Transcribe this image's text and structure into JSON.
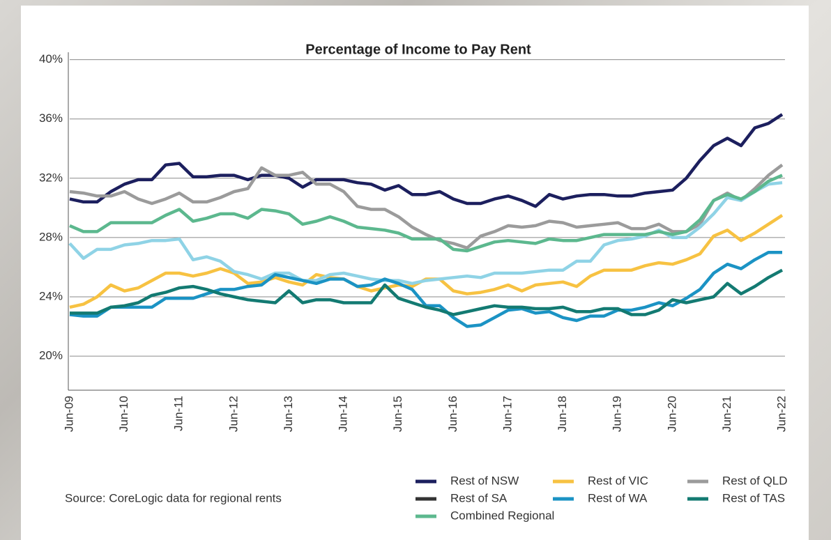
{
  "chart_data": {
    "type": "line",
    "title": "Percentage of Income to Pay Rent",
    "source": "Source: CoreLogic data for regional rents",
    "categories": [
      "Jun-09",
      null,
      null,
      null,
      "Jun-10",
      null,
      null,
      null,
      "Jun-11",
      null,
      null,
      null,
      "Jun-12",
      null,
      null,
      null,
      "Jun-13",
      null,
      null,
      null,
      "Jun-14",
      null,
      null,
      null,
      "Jun-15",
      null,
      null,
      null,
      "Jun-16",
      null,
      null,
      null,
      "Jun-17",
      null,
      null,
      null,
      "Jun-18",
      null,
      null,
      null,
      "Jun-19",
      null,
      null,
      null,
      "Jun-20",
      null,
      null,
      null,
      "Jun-21",
      null,
      null,
      null,
      "Jun-22"
    ],
    "ylim": [
      17.7,
      40.5
    ],
    "yticks": [
      {
        "value": 20,
        "label": "20%"
      },
      {
        "value": 24,
        "label": "24%"
      },
      {
        "value": 28,
        "label": "28%"
      },
      {
        "value": 32,
        "label": "32%"
      },
      {
        "value": 36,
        "label": "36%"
      },
      {
        "value": 40,
        "label": "40%"
      }
    ],
    "grid": true,
    "series": [
      {
        "name": "Rest of NSW",
        "color": "#1c1f5e",
        "values": [
          30.6,
          30.4,
          30.4,
          31.1,
          31.6,
          31.9,
          31.9,
          32.9,
          33.0,
          32.1,
          32.1,
          32.2,
          32.2,
          31.9,
          32.2,
          32.2,
          32.0,
          31.4,
          31.9,
          31.9,
          31.9,
          31.7,
          31.6,
          31.2,
          31.5,
          30.9,
          30.9,
          31.1,
          30.6,
          30.3,
          30.3,
          30.6,
          30.8,
          30.5,
          30.1,
          30.9,
          30.6,
          30.8,
          30.9,
          30.9,
          30.8,
          30.8,
          31.0,
          31.1,
          31.2,
          32.0,
          33.2,
          34.2,
          34.7,
          34.2,
          35.4,
          35.7,
          36.3
        ]
      },
      {
        "name": "Rest of VIC",
        "color": "#f7c242",
        "values": [
          23.3,
          23.5,
          24.0,
          24.8,
          24.4,
          24.6,
          25.1,
          25.6,
          25.6,
          25.4,
          25.6,
          25.9,
          25.6,
          24.9,
          25.0,
          25.3,
          25.0,
          24.8,
          25.5,
          25.3,
          25.2,
          24.7,
          24.4,
          24.6,
          24.8,
          24.7,
          25.2,
          25.2,
          24.4,
          24.2,
          24.3,
          24.5,
          24.8,
          24.4,
          24.8,
          24.9,
          25.0,
          24.7,
          25.4,
          25.8,
          25.8,
          25.8,
          26.1,
          26.3,
          26.2,
          26.5,
          26.9,
          28.1,
          28.5,
          27.8,
          28.3,
          28.9,
          29.5
        ]
      },
      {
        "name": "Rest of QLD",
        "color": "#9b9b9b",
        "values": [
          31.1,
          31.0,
          30.8,
          30.8,
          31.1,
          30.6,
          30.3,
          30.6,
          31.0,
          30.4,
          30.4,
          30.7,
          31.1,
          31.3,
          32.7,
          32.2,
          32.2,
          32.4,
          31.6,
          31.6,
          31.1,
          30.1,
          29.9,
          29.9,
          29.4,
          28.7,
          28.2,
          27.8,
          27.6,
          27.3,
          28.1,
          28.4,
          28.8,
          28.7,
          28.8,
          29.1,
          29.0,
          28.7,
          28.8,
          28.9,
          29.0,
          28.6,
          28.6,
          28.9,
          28.4,
          28.4,
          28.9,
          30.5,
          31.0,
          30.5,
          31.3,
          32.2,
          32.9
        ]
      },
      {
        "name": "Rest of SA",
        "color": "#8fd3e6",
        "legend_color": "#333333",
        "values": [
          27.6,
          26.6,
          27.2,
          27.2,
          27.5,
          27.6,
          27.8,
          27.8,
          27.9,
          26.5,
          26.7,
          26.4,
          25.7,
          25.5,
          25.2,
          25.6,
          25.6,
          25.1,
          25.1,
          25.5,
          25.6,
          25.4,
          25.2,
          25.1,
          25.1,
          24.9,
          25.1,
          25.2,
          25.3,
          25.4,
          25.3,
          25.6,
          25.6,
          25.6,
          25.7,
          25.8,
          25.8,
          26.4,
          26.4,
          27.5,
          27.8,
          27.9,
          28.1,
          28.5,
          28.0,
          28.0,
          28.7,
          29.6,
          30.7,
          30.5,
          31.1,
          31.6,
          31.7
        ]
      },
      {
        "name": "Rest of WA",
        "color": "#1b93c4",
        "values": [
          22.8,
          22.7,
          22.7,
          23.3,
          23.3,
          23.3,
          23.3,
          23.9,
          23.9,
          23.9,
          24.2,
          24.5,
          24.5,
          24.7,
          24.8,
          25.5,
          25.3,
          25.1,
          24.9,
          25.2,
          25.2,
          24.7,
          24.8,
          25.2,
          24.9,
          24.5,
          23.4,
          23.4,
          22.6,
          22.0,
          22.1,
          22.6,
          23.1,
          23.2,
          22.9,
          23.0,
          22.6,
          22.4,
          22.7,
          22.7,
          23.1,
          23.1,
          23.3,
          23.6,
          23.4,
          23.9,
          24.5,
          25.6,
          26.2,
          25.9,
          26.5,
          27.0,
          27.0
        ]
      },
      {
        "name": "Rest of TAS",
        "color": "#137a72",
        "values": [
          22.9,
          22.9,
          22.9,
          23.3,
          23.4,
          23.6,
          24.1,
          24.3,
          24.6,
          24.7,
          24.5,
          24.2,
          24.0,
          23.8,
          23.7,
          23.6,
          24.4,
          23.6,
          23.8,
          23.8,
          23.6,
          23.6,
          23.6,
          24.8,
          23.9,
          23.6,
          23.3,
          23.1,
          22.8,
          23.0,
          23.2,
          23.4,
          23.3,
          23.3,
          23.2,
          23.2,
          23.3,
          23.0,
          23.0,
          23.2,
          23.2,
          22.8,
          22.8,
          23.1,
          23.8,
          23.6,
          23.8,
          24.0,
          24.9,
          24.2,
          24.7,
          25.3,
          25.8
        ]
      },
      {
        "name": "Combined Regional",
        "color": "#5cb88e",
        "values": [
          28.8,
          28.4,
          28.4,
          29.0,
          29.0,
          29.0,
          29.0,
          29.5,
          29.9,
          29.1,
          29.3,
          29.6,
          29.6,
          29.3,
          29.9,
          29.8,
          29.6,
          28.9,
          29.1,
          29.4,
          29.1,
          28.7,
          28.6,
          28.5,
          28.3,
          27.9,
          27.9,
          27.9,
          27.2,
          27.1,
          27.4,
          27.7,
          27.8,
          27.7,
          27.6,
          27.9,
          27.8,
          27.8,
          28.0,
          28.2,
          28.2,
          28.2,
          28.2,
          28.4,
          28.2,
          28.4,
          29.2,
          30.5,
          30.9,
          30.6,
          31.1,
          31.8,
          32.2
        ]
      }
    ]
  }
}
